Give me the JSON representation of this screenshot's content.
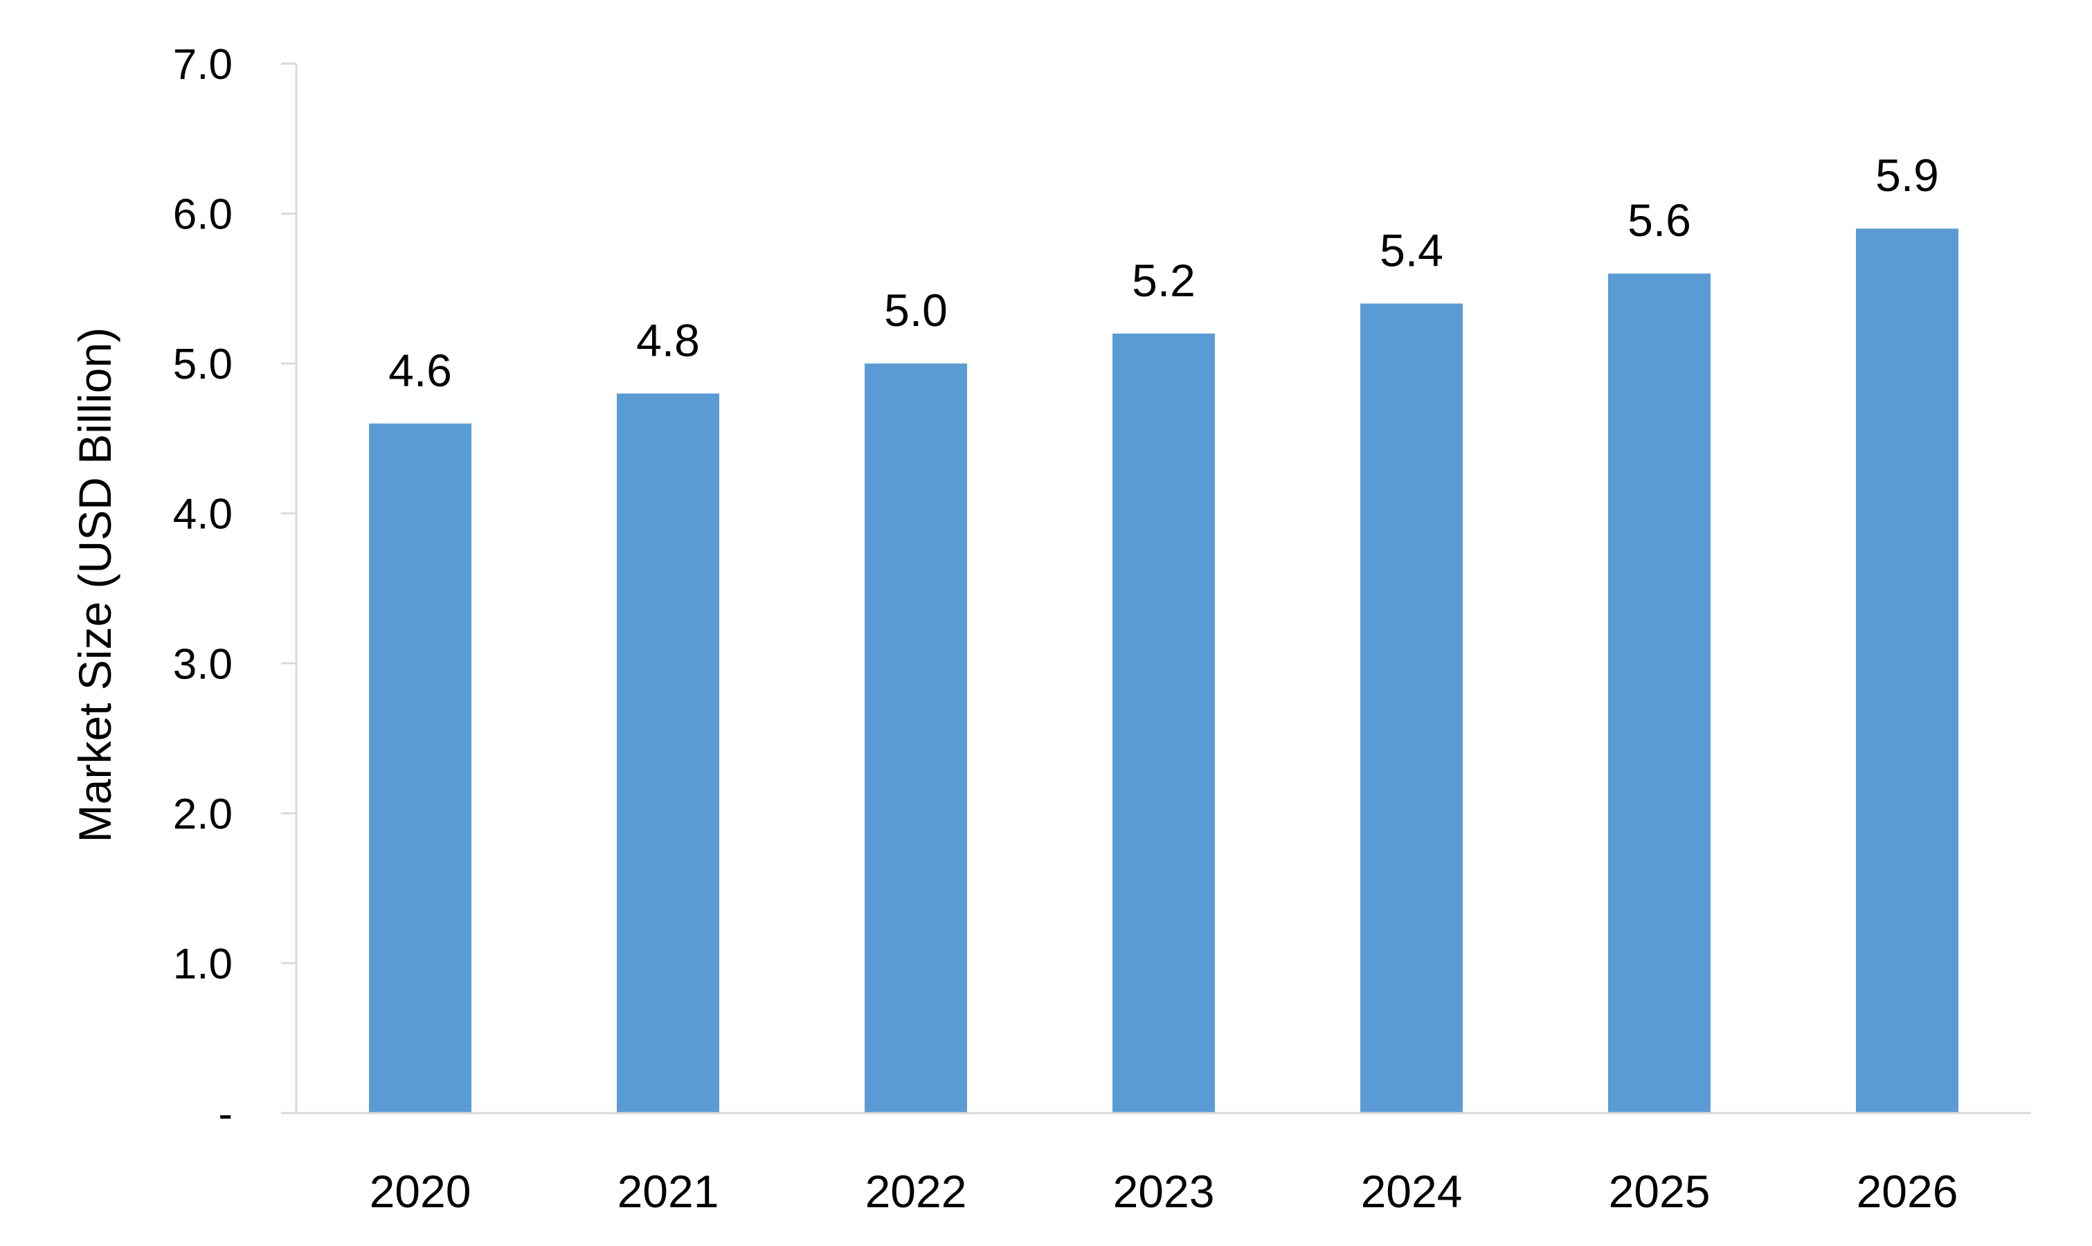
{
  "chart_data": {
    "type": "bar",
    "categories": [
      "2020",
      "2021",
      "2022",
      "2023",
      "2024",
      "2025",
      "2026"
    ],
    "values": [
      4.6,
      4.8,
      5.0,
      5.2,
      5.4,
      5.6,
      5.9
    ],
    "data_labels": [
      "4.6",
      "4.8",
      "5.0",
      "5.2",
      "5.4",
      "5.6",
      "5.9"
    ],
    "title": "",
    "xlabel": "",
    "ylabel": "Market Size (USD Billion)",
    "ylim": [
      0,
      7
    ],
    "yticks": [
      0,
      1,
      2,
      3,
      4,
      5,
      6,
      7
    ],
    "ytick_labels": [
      "-",
      "1.0",
      "2.0",
      "3.0",
      "4.0",
      "5.0",
      "6.0",
      "7.0"
    ],
    "grid": false,
    "legend": "none",
    "colors": {
      "bar": "#5B9BD5",
      "axis": "#D9D9D9",
      "text": "#000000"
    }
  }
}
